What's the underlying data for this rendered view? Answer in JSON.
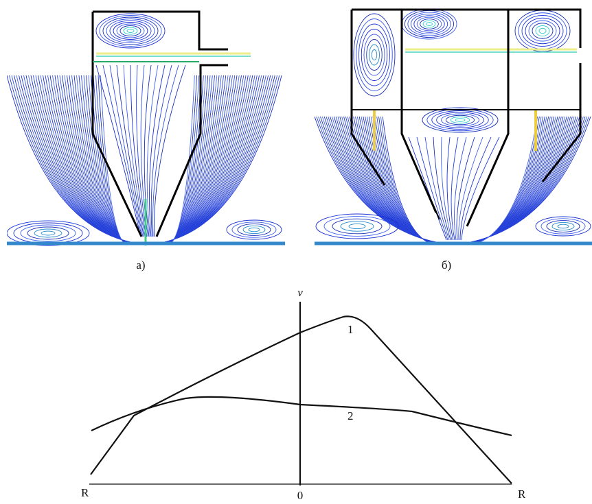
{
  "figure": {
    "panel_a_label": "а)",
    "panel_b_label": "б)"
  },
  "diagram": {
    "axis_label": "v",
    "curve_1_label": "1",
    "curve_2_label": "2",
    "left_label": "R",
    "origin_label": "0",
    "right_label": "R"
  }
}
